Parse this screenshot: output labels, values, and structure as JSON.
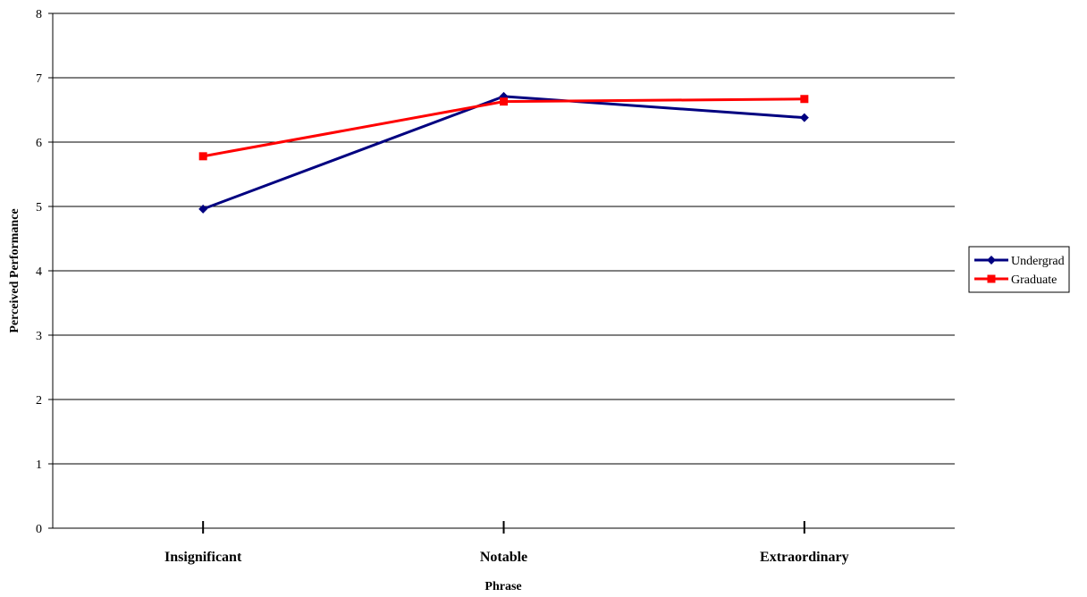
{
  "chart_data": {
    "type": "line",
    "categories": [
      "Insignificant",
      "Notable",
      "Extraordinary"
    ],
    "series": [
      {
        "name": "Undergrad",
        "values": [
          4.96,
          6.71,
          6.38
        ],
        "color": "#000080",
        "marker": "diamond"
      },
      {
        "name": "Graduate",
        "values": [
          5.78,
          6.63,
          6.67
        ],
        "color": "#ff0000",
        "marker": "square"
      }
    ],
    "title": "",
    "xlabel": "Phrase",
    "ylabel": "Perceived Performance",
    "ylim": [
      0,
      8
    ],
    "yticks": [
      "0",
      "1",
      "2",
      "3",
      "4",
      "5",
      "6",
      "7",
      "8"
    ],
    "grid": "horizontal",
    "legend_position": "right"
  }
}
